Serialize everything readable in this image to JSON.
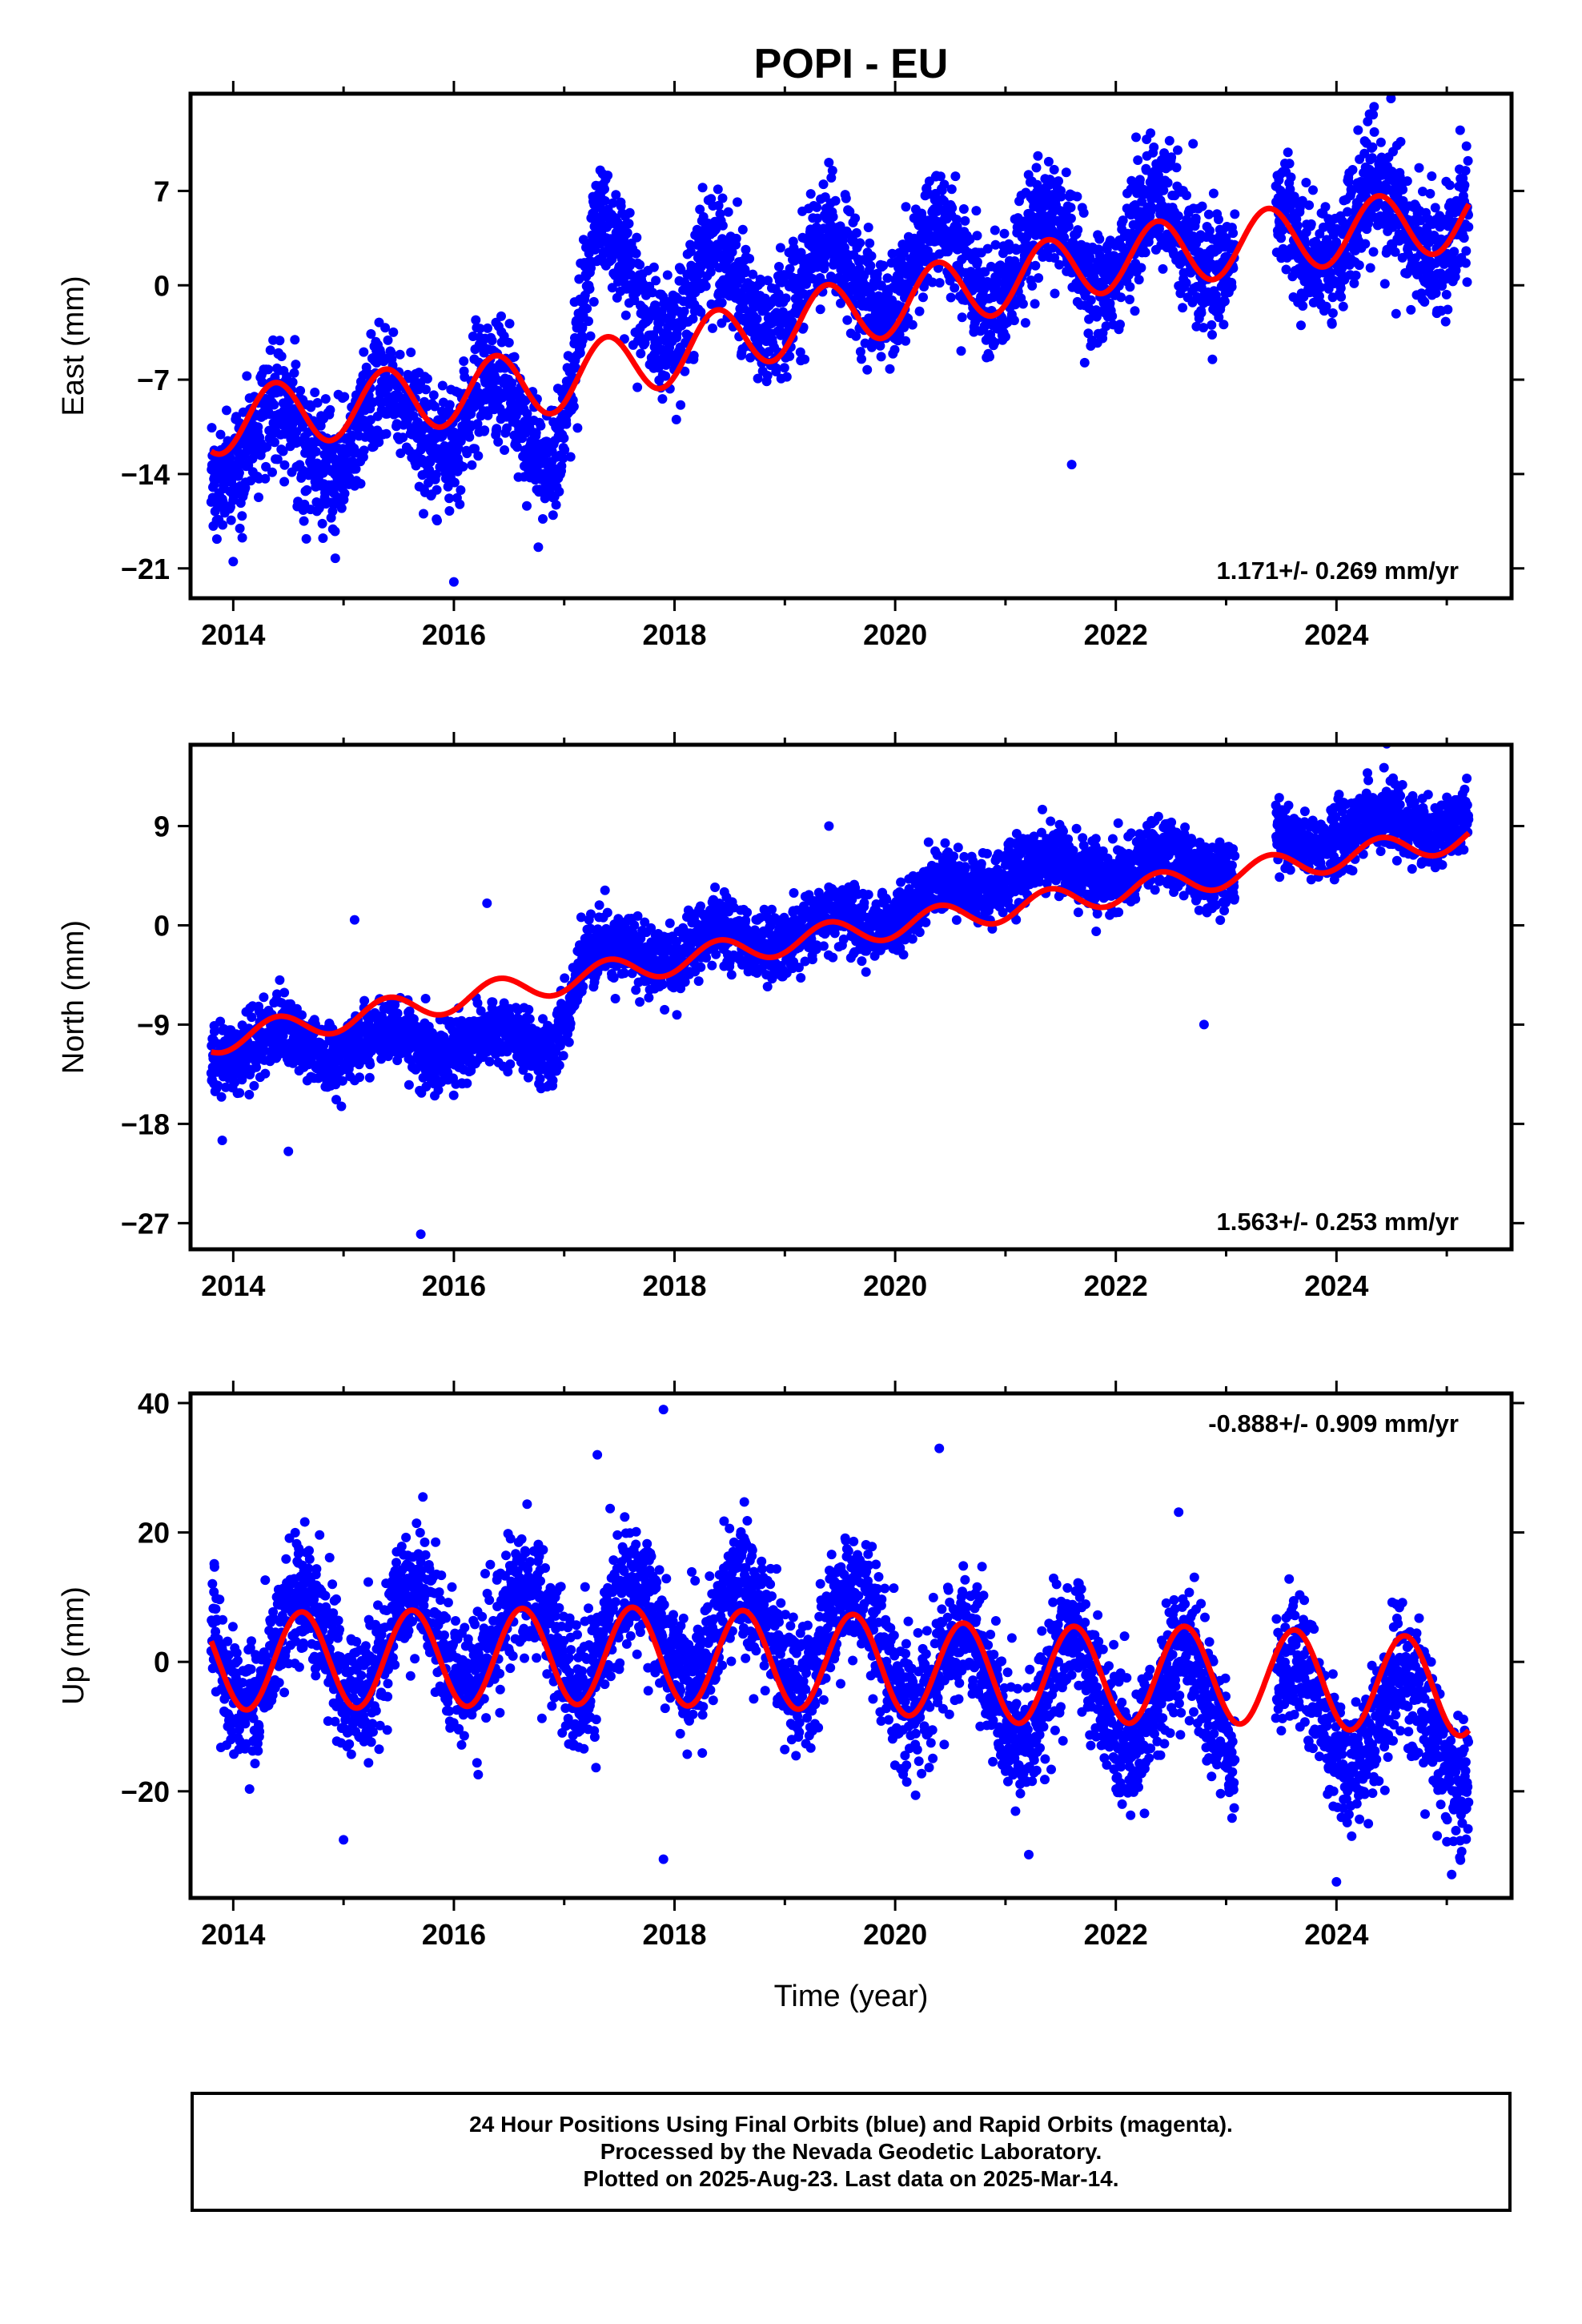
{
  "title": "POPI - EU",
  "xlabel": "Time (year)",
  "colors": {
    "points": "#0000ff",
    "model": "#ff0000",
    "frame": "#000000"
  },
  "chart_data": [
    {
      "type": "scatter",
      "ylabel": "East (mm)",
      "xlim": [
        2013.7,
        2025.5
      ],
      "ylim": [
        -22.5,
        13.5
      ],
      "x_ticks": [
        2014,
        2016,
        2018,
        2020,
        2022,
        2024
      ],
      "x_tick_labels": [
        "2014",
        "2016",
        "2018",
        "2020",
        "2022",
        "2024"
      ],
      "y_ticks": [
        7,
        0,
        -7,
        -14,
        -21
      ],
      "y_tick_labels": [
        "7",
        "0",
        "−7",
        "−14",
        "−21"
      ],
      "annotation": "1.171+/- 0.269 mm/yr",
      "annotation_position": "bottom-right",
      "data_start": 2013.8,
      "data_end": 2025.2,
      "velocity_mm_yr": 1.171,
      "model_anchors": [
        [
          2013.8,
          -10.2
        ],
        [
          2017.0,
          -7.0
        ],
        [
          2019.0,
          -3.0
        ],
        [
          2022.0,
          2.0
        ],
        [
          2025.2,
          5.0
        ]
      ],
      "annual_amplitude_mm": 2.4,
      "annual_peak_fraction": 0.38,
      "obs_anchors": [
        [
          2013.8,
          -12
        ],
        [
          2015.0,
          -11
        ],
        [
          2016.0,
          -9
        ],
        [
          2016.9,
          -11
        ],
        [
          2017.3,
          2
        ],
        [
          2018.0,
          -1
        ],
        [
          2019.0,
          0
        ],
        [
          2020.0,
          1
        ],
        [
          2022.0,
          3
        ],
        [
          2024.0,
          4
        ],
        [
          2025.2,
          5
        ]
      ],
      "obs_annual_amplitude_mm": 3.0,
      "scatter_sigma_mm": 2.2,
      "outliers": [
        [
          2014.0,
          -20.5
        ],
        [
          2016.0,
          -22.0
        ],
        [
          2021.6,
          -13.3
        ],
        [
          2022.7,
          10.5
        ],
        [
          2024.3,
          12.7
        ]
      ]
    },
    {
      "type": "scatter",
      "ylabel": "North (mm)",
      "xlim": [
        2013.7,
        2025.5
      ],
      "ylim": [
        -28.5,
        15.5
      ],
      "x_ticks": [
        2014,
        2016,
        2018,
        2020,
        2022,
        2024
      ],
      "x_tick_labels": [
        "2014",
        "2016",
        "2018",
        "2020",
        "2022",
        "2024"
      ],
      "y_ticks": [
        9,
        0,
        -9,
        -18,
        -27
      ],
      "y_tick_labels": [
        "9",
        "0",
        "−9",
        "−18",
        "−27"
      ],
      "annotation": "1.563+/- 0.253 mm/yr",
      "annotation_position": "bottom-right",
      "data_start": 2013.8,
      "data_end": 2025.2,
      "velocity_mm_yr": 1.563,
      "model_anchors": [
        [
          2013.8,
          -10.5
        ],
        [
          2017.0,
          -5.0
        ],
        [
          2019.0,
          -1.5
        ],
        [
          2022.0,
          3.0
        ],
        [
          2025.2,
          8.0
        ]
      ],
      "annual_amplitude_mm": 1.2,
      "annual_peak_fraction": 0.4,
      "obs_anchors": [
        [
          2013.8,
          -11
        ],
        [
          2016.9,
          -10.5
        ],
        [
          2017.2,
          -3
        ],
        [
          2019.0,
          -1
        ],
        [
          2020.0,
          1
        ],
        [
          2021.0,
          5
        ],
        [
          2022.0,
          5
        ],
        [
          2023.0,
          6
        ],
        [
          2024.0,
          8.5
        ],
        [
          2025.2,
          10
        ]
      ],
      "obs_annual_amplitude_mm": 1.2,
      "scatter_sigma_mm": 1.5,
      "outliers": [
        [
          2013.9,
          -19.5
        ],
        [
          2014.5,
          -20.5
        ],
        [
          2015.7,
          -28.0
        ],
        [
          2015.1,
          0.5
        ],
        [
          2016.3,
          2.0
        ],
        [
          2019.4,
          9.0
        ],
        [
          2022.8,
          -9.0
        ]
      ]
    },
    {
      "type": "scatter",
      "ylabel": "Up (mm)",
      "xlim": [
        2013.7,
        2025.5
      ],
      "ylim": [
        -35,
        40
      ],
      "x_ticks": [
        2014,
        2016,
        2018,
        2020,
        2022,
        2024
      ],
      "x_tick_labels": [
        "2014",
        "2016",
        "2018",
        "2020",
        "2022",
        "2024"
      ],
      "y_ticks": [
        40,
        20,
        0,
        -20
      ],
      "y_tick_labels": [
        "40",
        "20",
        "0",
        "−20"
      ],
      "annotation": "-0.888+/- 0.909 mm/yr",
      "annotation_position": "top-right",
      "data_start": 2013.8,
      "data_end": 2025.2,
      "velocity_mm_yr": -0.888,
      "model_anchors": [
        [
          2013.8,
          0.0
        ],
        [
          2017.5,
          1.0
        ],
        [
          2019.5,
          0.0
        ],
        [
          2021.0,
          -2.0
        ],
        [
          2023.0,
          -2.0
        ],
        [
          2025.2,
          -4.0
        ]
      ],
      "annual_amplitude_mm": 7.5,
      "annual_peak_fraction": 0.62,
      "obs_anchors": [
        [
          2013.8,
          1
        ],
        [
          2016.5,
          4
        ],
        [
          2018.0,
          5
        ],
        [
          2019.7,
          4
        ],
        [
          2020.5,
          -3
        ],
        [
          2022.0,
          -6
        ],
        [
          2024.0,
          -8
        ],
        [
          2025.2,
          -12
        ]
      ],
      "obs_annual_amplitude_mm": 8.0,
      "scatter_sigma_mm": 5.0,
      "outliers": [
        [
          2015.0,
          -27.5
        ],
        [
          2017.9,
          39.0
        ],
        [
          2017.9,
          -30.5
        ],
        [
          2020.4,
          33.0
        ],
        [
          2017.3,
          32.0
        ],
        [
          2024.0,
          -34.0
        ]
      ]
    }
  ],
  "footer": {
    "line1": "24 Hour Positions Using Final Orbits (blue) and Rapid Orbits (magenta).",
    "line2": "Processed by the Nevada Geodetic Laboratory.",
    "line3": "Plotted on 2025-Aug-23. Last data on 2025-Mar-14."
  }
}
